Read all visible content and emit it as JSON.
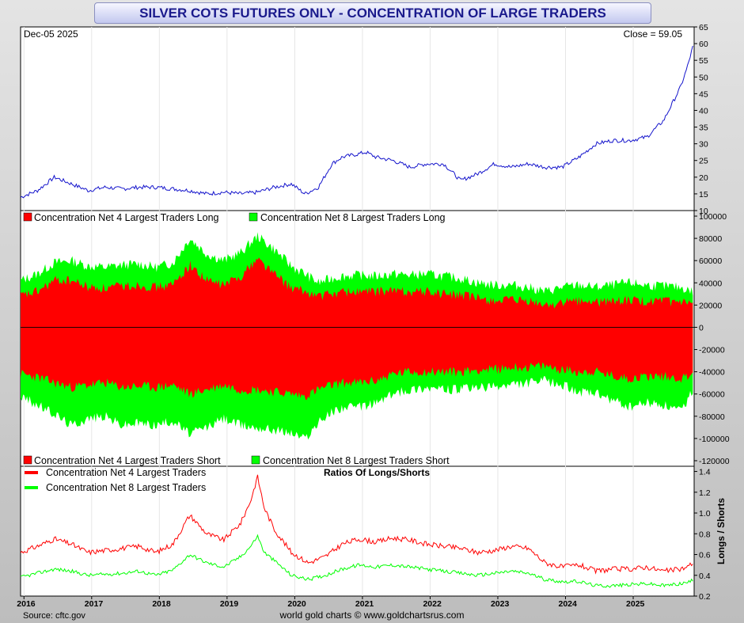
{
  "title": "SILVER COTS FUTURES ONLY - CONCENTRATION OF LARGE TRADERS",
  "price_panel": {
    "date": "Dec-05  2025",
    "close": "Close = 59.05"
  },
  "legend_long": {
    "red": "Concentration Net 4 Largest Traders Long",
    "green": "Concentration Net 8 Largest Traders Long"
  },
  "legend_short": {
    "red": "Concentration Net 4 Largest Traders Short",
    "green": "Concentration Net 8 Largest Traders Short"
  },
  "ratio_panel": {
    "title": "Ratios Of Longs/Shorts",
    "ylabel": "Longs / Shorts",
    "red": "Concentration Net 4 Largest Traders",
    "green": "Concentration Net 8 Largest Traders"
  },
  "footer": {
    "source": "Source: cftc.gov",
    "credit": "world gold charts © www.goldchartsrus.com"
  },
  "colors": {
    "price": "#1515cc",
    "red": "#ff0000",
    "green": "#00ff00",
    "title_text": "#1a1a8c"
  },
  "chart_data": [
    {
      "type": "line",
      "name": "price",
      "ylim": [
        10,
        65
      ],
      "yticks": [
        "10",
        "15",
        "20",
        "25",
        "30",
        "35",
        "40",
        "45",
        "50",
        "55",
        "60",
        "65"
      ],
      "xlim": [
        2016.0,
        2025.95
      ],
      "x": [
        2016.0,
        2016.25,
        2016.5,
        2016.75,
        2017.0,
        2017.25,
        2017.5,
        2017.75,
        2018.0,
        2018.25,
        2018.5,
        2018.75,
        2019.0,
        2019.25,
        2019.5,
        2019.75,
        2020.0,
        2020.2,
        2020.4,
        2020.6,
        2020.75,
        2021.0,
        2021.1,
        2021.25,
        2021.5,
        2021.75,
        2022.0,
        2022.25,
        2022.5,
        2022.75,
        2023.0,
        2023.25,
        2023.5,
        2023.75,
        2024.0,
        2024.25,
        2024.5,
        2024.75,
        2025.0,
        2025.25,
        2025.5,
        2025.75,
        2025.85,
        2025.93
      ],
      "values": [
        14,
        16,
        20,
        18,
        16,
        17,
        16.5,
        17,
        17,
        16.5,
        16,
        15,
        15.5,
        15,
        15.5,
        17,
        18,
        15,
        17,
        24,
        26,
        27,
        27.5,
        26,
        25,
        23,
        24,
        24,
        19,
        21,
        24,
        23,
        24,
        23,
        23,
        26,
        30,
        31,
        31,
        32,
        37,
        47,
        53,
        59
      ],
      "series": []
    },
    {
      "type": "area",
      "name": "positions",
      "ylim": [
        -125000,
        105000
      ],
      "yticks": [
        "100000",
        "80000",
        "60000",
        "40000",
        "20000",
        "0",
        "-20000",
        "-40000",
        "-60000",
        "-80000",
        "-100000",
        "-120000"
      ],
      "x": [
        2016.0,
        2016.25,
        2016.5,
        2016.75,
        2017.0,
        2017.25,
        2017.5,
        2017.75,
        2018.0,
        2018.25,
        2018.5,
        2018.75,
        2019.0,
        2019.25,
        2019.5,
        2019.75,
        2020.0,
        2020.2,
        2020.4,
        2020.6,
        2020.75,
        2021.0,
        2021.25,
        2021.5,
        2021.75,
        2022.0,
        2022.25,
        2022.5,
        2022.75,
        2023.0,
        2023.25,
        2023.5,
        2023.75,
        2024.0,
        2024.25,
        2024.5,
        2024.75,
        2025.0,
        2025.25,
        2025.5,
        2025.75,
        2025.85,
        2025.93
      ],
      "series": [
        {
          "name": "Concentration Net 8 Largest Traders Long",
          "values": [
            42000,
            48000,
            58000,
            60000,
            55000,
            54000,
            56000,
            57000,
            54000,
            58000,
            80000,
            66000,
            60000,
            67000,
            82000,
            70000,
            55000,
            48000,
            40000,
            44000,
            46000,
            47000,
            46000,
            48000,
            47000,
            48000,
            46000,
            44000,
            40000,
            38000,
            38000,
            36000,
            32000,
            36000,
            38000,
            36000,
            38000,
            40000,
            38000,
            37000,
            36000,
            34000,
            32000
          ]
        },
        {
          "name": "Concentration Net 4 Largest Traders Long",
          "values": [
            28000,
            32000,
            42000,
            42000,
            36000,
            35000,
            37000,
            38000,
            36000,
            38000,
            56000,
            42000,
            38000,
            46000,
            62000,
            48000,
            35000,
            32000,
            28000,
            30000,
            32000,
            32000,
            32000,
            33000,
            32000,
            32000,
            30000,
            29000,
            26000,
            24000,
            24000,
            23000,
            20000,
            22000,
            24000,
            22000,
            24000,
            24000,
            23000,
            23000,
            22000,
            21000,
            20000
          ]
        },
        {
          "name": "Concentration Net 4 Largest Traders Short",
          "values": [
            -42000,
            -45000,
            -50000,
            -54000,
            -52000,
            -50000,
            -54000,
            -53000,
            -54000,
            -52000,
            -60000,
            -56000,
            -52000,
            -56000,
            -56000,
            -58000,
            -60000,
            -62000,
            -56000,
            -52000,
            -50000,
            -50000,
            -48000,
            -42000,
            -40000,
            -40000,
            -40000,
            -40000,
            -38000,
            -38000,
            -36000,
            -36000,
            -35000,
            -38000,
            -40000,
            -40000,
            -44000,
            -46000,
            -44000,
            -44000,
            -46000,
            -44000,
            -40000
          ]
        },
        {
          "name": "Concentration Net 8 Largest Traders Short",
          "values": [
            -62000,
            -70000,
            -78000,
            -88000,
            -82000,
            -80000,
            -88000,
            -86000,
            -88000,
            -84000,
            -96000,
            -90000,
            -82000,
            -88000,
            -90000,
            -92000,
            -95000,
            -100000,
            -86000,
            -76000,
            -72000,
            -72000,
            -68000,
            -60000,
            -56000,
            -54000,
            -56000,
            -56000,
            -54000,
            -54000,
            -52000,
            -50000,
            -48000,
            -52000,
            -58000,
            -60000,
            -66000,
            -72000,
            -68000,
            -70000,
            -76000,
            -66000,
            -56000
          ]
        }
      ]
    },
    {
      "type": "line",
      "name": "ratios",
      "ylim": [
        0.2,
        1.45
      ],
      "yticks": [
        "0.2",
        "0.4",
        "0.6",
        "0.8",
        "1.0",
        "1.2",
        "1.4"
      ],
      "x": [
        2016.0,
        2016.25,
        2016.5,
        2016.75,
        2017.0,
        2017.25,
        2017.5,
        2017.75,
        2018.0,
        2018.25,
        2018.5,
        2018.75,
        2019.0,
        2019.25,
        2019.4,
        2019.5,
        2019.6,
        2019.75,
        2020.0,
        2020.25,
        2020.5,
        2020.75,
        2021.0,
        2021.25,
        2021.5,
        2021.75,
        2022.0,
        2022.25,
        2022.5,
        2022.75,
        2023.0,
        2023.25,
        2023.5,
        2023.75,
        2024.0,
        2024.25,
        2024.5,
        2024.75,
        2025.0,
        2025.25,
        2025.5,
        2025.75,
        2025.85,
        2025.93
      ],
      "categories": [
        "2016",
        "2017",
        "2018",
        "2019",
        "2020",
        "2021",
        "2022",
        "2023",
        "2024",
        "2025"
      ],
      "series": [
        {
          "name": "Concentration Net 4 Largest Traders",
          "values": [
            0.62,
            0.68,
            0.75,
            0.7,
            0.62,
            0.64,
            0.66,
            0.68,
            0.62,
            0.7,
            0.98,
            0.8,
            0.74,
            0.9,
            1.12,
            1.35,
            1.05,
            0.84,
            0.62,
            0.52,
            0.58,
            0.7,
            0.75,
            0.72,
            0.76,
            0.74,
            0.7,
            0.68,
            0.66,
            0.62,
            0.64,
            0.68,
            0.66,
            0.52,
            0.48,
            0.5,
            0.44,
            0.46,
            0.46,
            0.48,
            0.44,
            0.46,
            0.48,
            0.52
          ]
        },
        {
          "name": "Concentration Net 8 Largest Traders",
          "values": [
            0.38,
            0.42,
            0.46,
            0.44,
            0.4,
            0.41,
            0.42,
            0.44,
            0.4,
            0.45,
            0.6,
            0.52,
            0.48,
            0.58,
            0.68,
            0.78,
            0.62,
            0.54,
            0.4,
            0.36,
            0.4,
            0.46,
            0.5,
            0.48,
            0.5,
            0.48,
            0.46,
            0.44,
            0.42,
            0.4,
            0.42,
            0.44,
            0.42,
            0.36,
            0.34,
            0.34,
            0.3,
            0.3,
            0.31,
            0.32,
            0.3,
            0.32,
            0.33,
            0.35
          ]
        }
      ]
    }
  ]
}
